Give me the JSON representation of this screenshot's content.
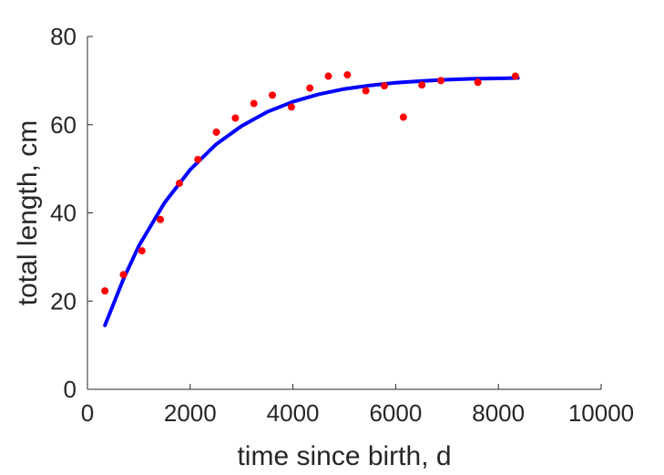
{
  "chart_data": {
    "type": "scatter",
    "title": "",
    "xlabel": "time since birth, d",
    "ylabel": "total length, cm",
    "xlim": [
      0,
      10000
    ],
    "ylim": [
      0,
      80
    ],
    "xticks": [
      0,
      2000,
      4000,
      6000,
      8000,
      10000
    ],
    "yticks": [
      0,
      20,
      40,
      60,
      80
    ],
    "grid": false,
    "legend": "none",
    "series": [
      {
        "type": "scatter",
        "color": "#ff0000",
        "x": [
          340,
          700,
          1060,
          1420,
          1790,
          2150,
          2510,
          2880,
          3240,
          3600,
          3970,
          4330,
          4690,
          5060,
          5420,
          5780,
          6150,
          6510,
          6880,
          7600,
          8330
        ],
        "y": [
          22.3,
          26.0,
          31.4,
          38.5,
          46.7,
          52.1,
          58.3,
          61.5,
          64.8,
          66.7,
          64.0,
          68.3,
          71.0,
          71.3,
          67.7,
          68.8,
          61.7,
          69.0,
          70.0,
          69.6,
          71.0
        ]
      },
      {
        "type": "line",
        "color": "#0000ff",
        "x": [
          340,
          700,
          1000,
          1500,
          2000,
          2500,
          3000,
          3500,
          4000,
          4500,
          5000,
          5500,
          6000,
          6500,
          7000,
          7500,
          8000,
          8380
        ],
        "y": [
          14.5,
          25.0,
          32.5,
          42.3,
          49.8,
          55.5,
          59.7,
          62.9,
          65.2,
          66.9,
          68.1,
          68.9,
          69.5,
          69.9,
          70.2,
          70.4,
          70.5,
          70.6
        ]
      }
    ]
  }
}
